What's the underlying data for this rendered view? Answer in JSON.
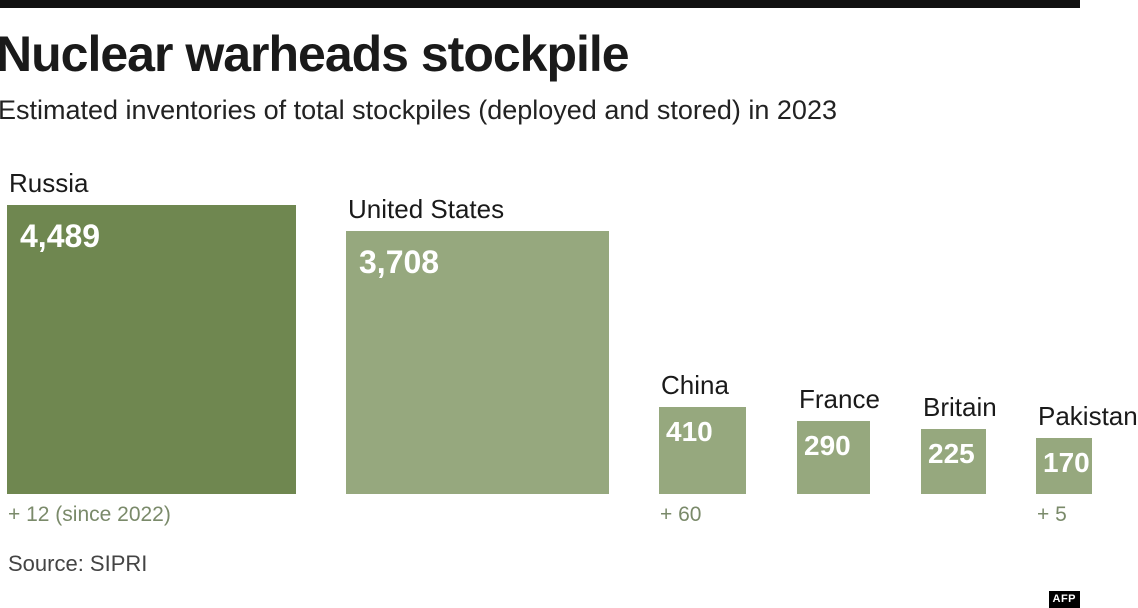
{
  "title": "Nuclear warheads stockpile",
  "subtitle": "Estimated inventories of total stockpiles (deployed and stored) in 2023",
  "source": "Source: SIPRI",
  "credit": "AFP",
  "colors": {
    "russia": "#6f8750",
    "others": "#96a87e",
    "change_text": "#7a8a6a"
  },
  "chart_data": {
    "type": "bar",
    "categories": [
      "Russia",
      "United States",
      "China",
      "France",
      "Britain",
      "Pakistan"
    ],
    "values": [
      4489,
      3708,
      410,
      290,
      225,
      170
    ],
    "value_labels": [
      "4,489",
      "3,708",
      "410",
      "290",
      "225",
      "170"
    ],
    "changes": [
      "+ 12 (since 2022)",
      "",
      "+ 60",
      "",
      "",
      "+ 5"
    ],
    "encoding": "square area proportional to value"
  }
}
